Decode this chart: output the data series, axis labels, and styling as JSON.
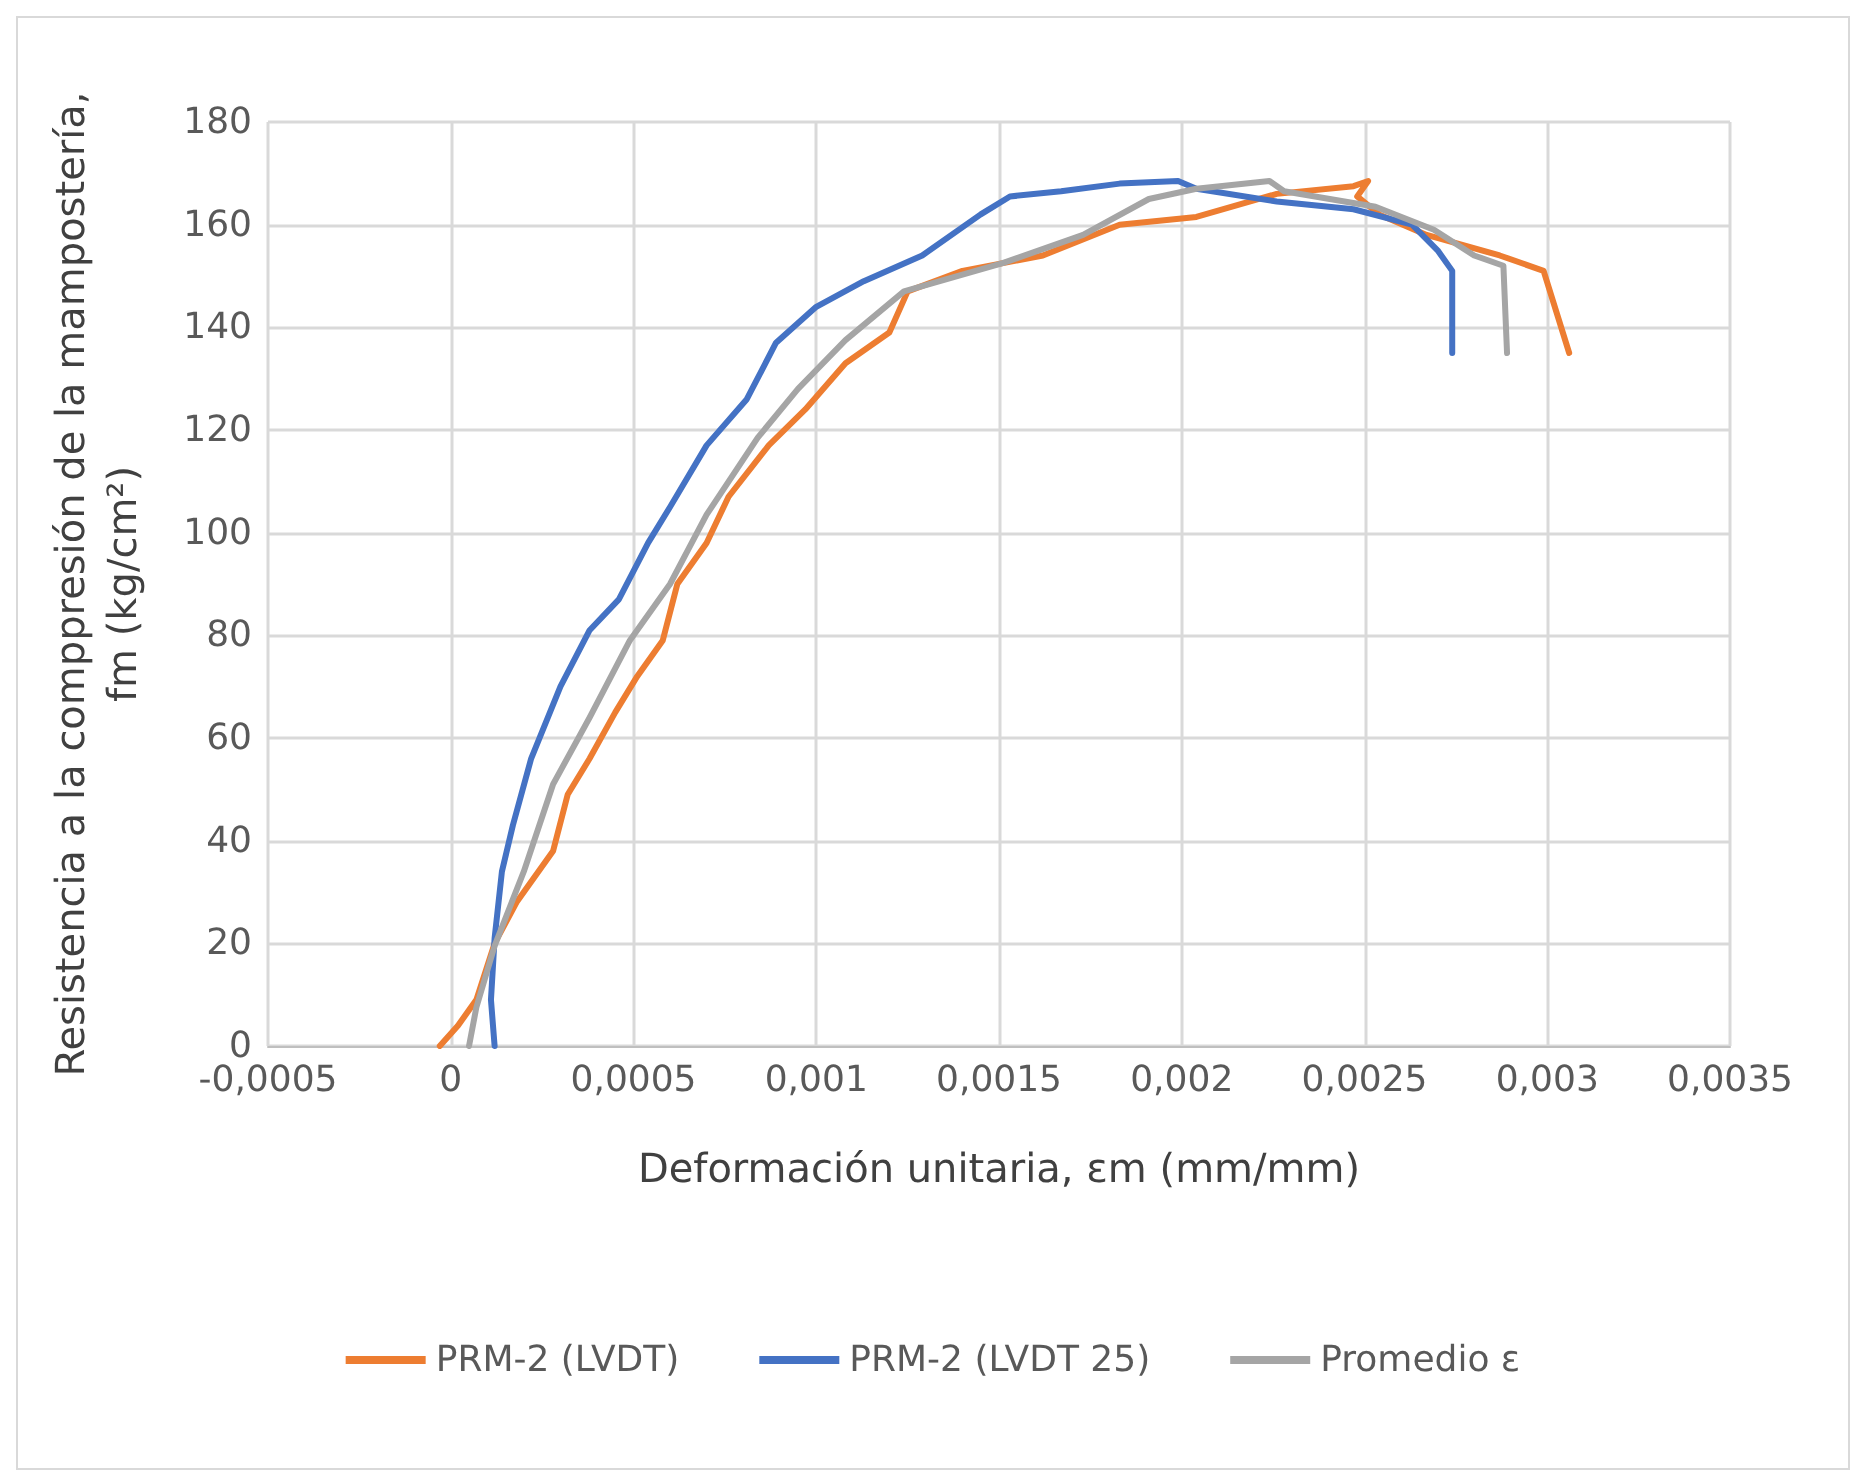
{
  "chart_data": {
    "type": "line",
    "xlabel": "Deformación unitaria, εm (mm/mm)",
    "ylabel": "Resistencia a la comppresión de la mampostería,\nfm (kg/cm²)",
    "xlim": [
      -0.0005,
      0.0035
    ],
    "xticks": [
      {
        "value": -0.0005,
        "label": "-0,0005"
      },
      0,
      {
        "value": 0.0005,
        "label": "0,0005"
      },
      {
        "value": 0.001,
        "label": "0,001"
      },
      {
        "value": 0.0015,
        "label": "0,0015"
      },
      {
        "value": 0.002,
        "label": "0,002"
      },
      {
        "value": 0.0025,
        "label": "0,0025"
      },
      {
        "value": 0.003,
        "label": "0,003"
      },
      {
        "value": 0.0035,
        "label": "0,0035"
      }
    ],
    "ylim": [
      0,
      180
    ],
    "yticks": [
      0,
      20,
      40,
      60,
      80,
      100,
      120,
      140,
      160,
      180
    ],
    "grid": true,
    "legend": "bottom",
    "marker": "none",
    "line_style": "solid",
    "series": [
      {
        "name": "PRM-2 (LVDT)",
        "color": "#ed7d31",
        "x": [
          -3e-05,
          2e-05,
          7e-05,
          0.00012,
          0.00018,
          0.00028,
          0.00032,
          0.00038,
          0.00045,
          0.00051,
          0.00058,
          0.00062,
          0.0007,
          0.00076,
          0.00087,
          0.00097,
          0.00108,
          0.0012,
          0.00125,
          0.0014,
          0.00162,
          0.00183,
          0.00204,
          0.00226,
          0.00247,
          0.00251,
          0.00248,
          0.00254,
          0.00267,
          0.00287,
          0.00299,
          0.00306
        ],
        "values": [
          0,
          4,
          9,
          20,
          28,
          38,
          49,
          56,
          65,
          72,
          79,
          90,
          98,
          107,
          117,
          124,
          133,
          139,
          147,
          151,
          154,
          160,
          161.5,
          166,
          167.5,
          168.5,
          165.5,
          162,
          158,
          154,
          151,
          135
        ]
      },
      {
        "name": "PRM-2 (LVDT 25)",
        "color": "#4472c4",
        "x": [
          0.00012,
          0.00011,
          0.00012,
          0.00014,
          0.00017,
          0.00022,
          0.0003,
          0.00038,
          0.00046,
          0.00054,
          0.0006,
          0.0007,
          0.00081,
          0.00089,
          0.001,
          0.00113,
          0.00129,
          0.00145,
          0.00153,
          0.00167,
          0.00183,
          0.00199,
          0.00204,
          0.00226,
          0.00247,
          0.00263,
          0.0027,
          0.00274,
          0.00274
        ],
        "values": [
          0,
          9,
          21,
          34,
          43,
          56,
          70,
          81,
          87,
          98,
          105,
          117,
          126,
          137,
          144,
          149,
          154,
          162,
          165.5,
          166.5,
          168,
          168.5,
          167,
          164.5,
          163,
          160,
          155,
          151,
          135
        ]
      },
      {
        "name": "Promedio ε",
        "color": "#a5a5a5",
        "x": [
          5e-05,
          7e-05,
          0.00012,
          0.0002,
          0.00028,
          0.00038,
          0.00049,
          0.0006,
          0.0007,
          0.00084,
          0.00095,
          0.00108,
          0.00124,
          0.00151,
          0.00173,
          0.00191,
          0.00204,
          0.00224,
          0.00228,
          0.00253,
          0.00269,
          0.0028,
          0.00288,
          0.00289
        ],
        "values": [
          0,
          7.5,
          19.5,
          34,
          51,
          64,
          79,
          90,
          103.5,
          118.5,
          128,
          137.5,
          147,
          152.5,
          158,
          165,
          167,
          168.5,
          166.5,
          163.5,
          159,
          154,
          152,
          135
        ]
      }
    ]
  }
}
